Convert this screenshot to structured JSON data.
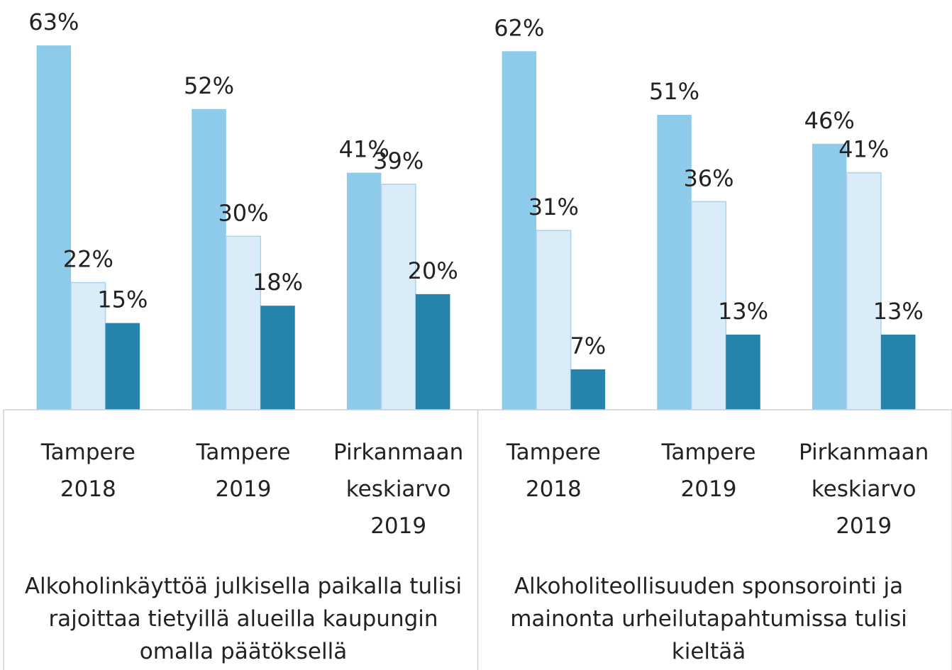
{
  "chart_data": {
    "type": "bar",
    "categories": [
      "Tampere 2018",
      "Tampere 2019",
      "Pirkanmaan keskiarvo 2019",
      "Tampere 2018",
      "Tampere 2019",
      "Pirkanmaan keskiarvo 2019"
    ],
    "groups": [
      "Alkoholinkäyttöä julkisella paikalla tulisi rajoittaa tietyillä alueilla kaupungin omalla päätöksellä",
      "Alkoholiteollisuuden sponsorointi ja mainonta urheilutapahtumissa tulisi kieltää"
    ],
    "series": [
      {
        "color": "#8ecbea",
        "values": [
          63,
          52,
          41,
          62,
          51,
          46
        ],
        "value_labels": [
          "63%",
          "52%",
          "41%",
          "62%",
          "51%",
          "46%"
        ]
      },
      {
        "color": "#d9ecf8",
        "values": [
          22,
          30,
          39,
          31,
          36,
          41
        ],
        "value_labels": [
          "22%",
          "30%",
          "39%",
          "31%",
          "36%",
          "41%"
        ]
      },
      {
        "color": "#2683ab",
        "values": [
          15,
          18,
          20,
          7,
          13,
          13
        ],
        "value_labels": [
          "15%",
          "18%",
          "20%",
          "7%",
          "13%",
          "13%"
        ]
      }
    ],
    "ylim": [
      0,
      70
    ],
    "grid": false
  }
}
